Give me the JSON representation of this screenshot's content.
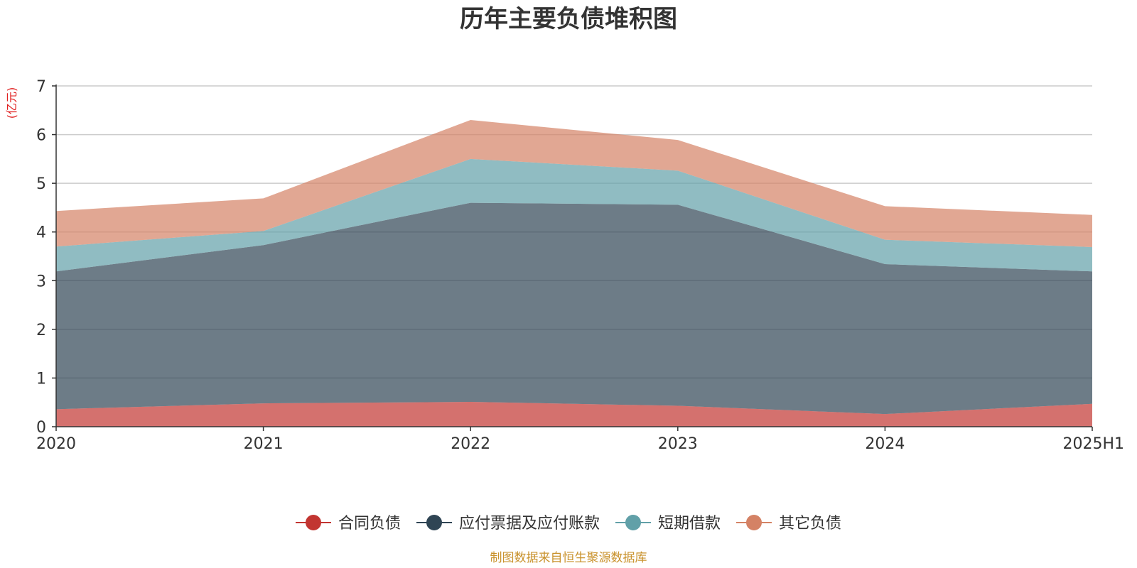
{
  "chart_data": {
    "type": "area",
    "stacked": true,
    "title": "历年主要负债堆积图",
    "unit_label": "(亿元)",
    "categories": [
      "2020",
      "2021",
      "2022",
      "2023",
      "2024",
      "2025H1"
    ],
    "ylim": [
      0,
      7
    ],
    "yticks": [
      "0",
      "1",
      "2",
      "3",
      "4",
      "5",
      "6",
      "7"
    ],
    "grid": true,
    "legend_position": "bottom-center",
    "series": [
      {
        "name": "合同负债",
        "color": "#c23531",
        "values": [
          0.36,
          0.48,
          0.51,
          0.43,
          0.26,
          0.47
        ]
      },
      {
        "name": "应付票据及应付账款",
        "color": "#2f4554",
        "values": [
          2.83,
          3.25,
          4.09,
          4.13,
          3.08,
          2.72
        ]
      },
      {
        "name": "短期借款",
        "color": "#61a0a8",
        "values": [
          0.51,
          0.29,
          0.9,
          0.7,
          0.5,
          0.5
        ]
      },
      {
        "name": "其它负债",
        "color": "#d48265",
        "values": [
          0.73,
          0.67,
          0.8,
          0.63,
          0.69,
          0.66
        ]
      }
    ],
    "source_note": "制图数据来自恒生聚源数据库"
  }
}
